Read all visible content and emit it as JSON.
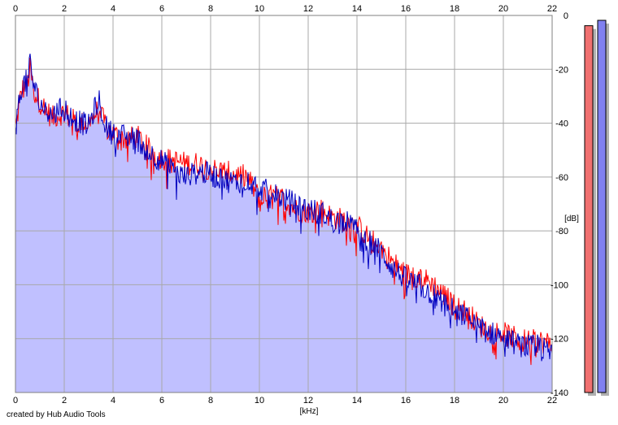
{
  "chart_data": {
    "type": "area",
    "xlabel": "[kHz]",
    "ylabel": "[dB]",
    "xlim": [
      0,
      22
    ],
    "ylim": [
      -140,
      0
    ],
    "x_ticks": [
      0,
      2,
      4,
      6,
      8,
      10,
      12,
      14,
      16,
      18,
      20,
      22
    ],
    "y_ticks": [
      0,
      -20,
      -40,
      -60,
      -80,
      -100,
      -120,
      -140
    ],
    "y_tick_labels": [
      "0",
      "-20",
      "-40",
      "-60",
      "-80",
      "-100",
      "-120",
      "-140"
    ],
    "grid": true,
    "series": [
      {
        "color": "#ff0000",
        "x": [
          0,
          0.25,
          0.5,
          0.6,
          0.75,
          1,
          1.5,
          2,
          2.5,
          3,
          3.4,
          3.75,
          4,
          4.5,
          5,
          5.5,
          6,
          6.5,
          7,
          7.5,
          8,
          8.5,
          9,
          9.5,
          10,
          10.5,
          11,
          11.5,
          12,
          12.5,
          13,
          13.5,
          14,
          14.5,
          15,
          15.5,
          16,
          16.5,
          17,
          17.5,
          18,
          18.5,
          19,
          19.5,
          20,
          20.5,
          21,
          21.5,
          22
        ],
        "values": [
          -42,
          -28,
          -25,
          -20,
          -28,
          -32,
          -38,
          -36,
          -40,
          -40,
          -35,
          -42,
          -44,
          -46,
          -45,
          -50,
          -53,
          -54,
          -55,
          -55,
          -57,
          -58,
          -59,
          -60,
          -68,
          -67,
          -68,
          -72,
          -73,
          -72,
          -75,
          -76,
          -78,
          -83,
          -86,
          -92,
          -96,
          -97,
          -99,
          -103,
          -108,
          -110,
          -115,
          -117,
          -118,
          -120,
          -121,
          -121,
          -122
        ]
      },
      {
        "color": "#0000c0",
        "x": [
          0,
          0.25,
          0.5,
          0.6,
          0.75,
          1,
          1.5,
          2,
          2.5,
          3,
          3.4,
          3.75,
          4,
          4.5,
          5,
          5.5,
          6,
          6.5,
          7,
          7.5,
          8,
          8.5,
          9,
          9.5,
          10,
          10.5,
          11,
          11.5,
          12,
          12.5,
          13,
          13.5,
          14,
          14.5,
          15,
          15.5,
          16,
          16.5,
          17,
          17.5,
          18,
          18.5,
          19,
          19.5,
          20,
          20.5,
          21,
          21.5,
          22
        ],
        "values": [
          -42,
          -26,
          -24,
          -17,
          -26,
          -33,
          -37,
          -34,
          -39,
          -41,
          -31,
          -42,
          -44,
          -45,
          -46,
          -51,
          -54,
          -58,
          -60,
          -58,
          -59,
          -61,
          -62,
          -61,
          -64,
          -66,
          -68,
          -70,
          -72,
          -73,
          -76,
          -76,
          -80,
          -84,
          -88,
          -94,
          -98,
          -100,
          -103,
          -106,
          -110,
          -112,
          -116,
          -118,
          -119,
          -122,
          -123,
          -123,
          -126
        ]
      }
    ],
    "level_meters": [
      {
        "color": "#f07070",
        "level_db": -2
      },
      {
        "color": "#8080f0",
        "level_db": 0
      }
    ]
  },
  "footer": {
    "credit": "created by Hub Audio Tools"
  }
}
